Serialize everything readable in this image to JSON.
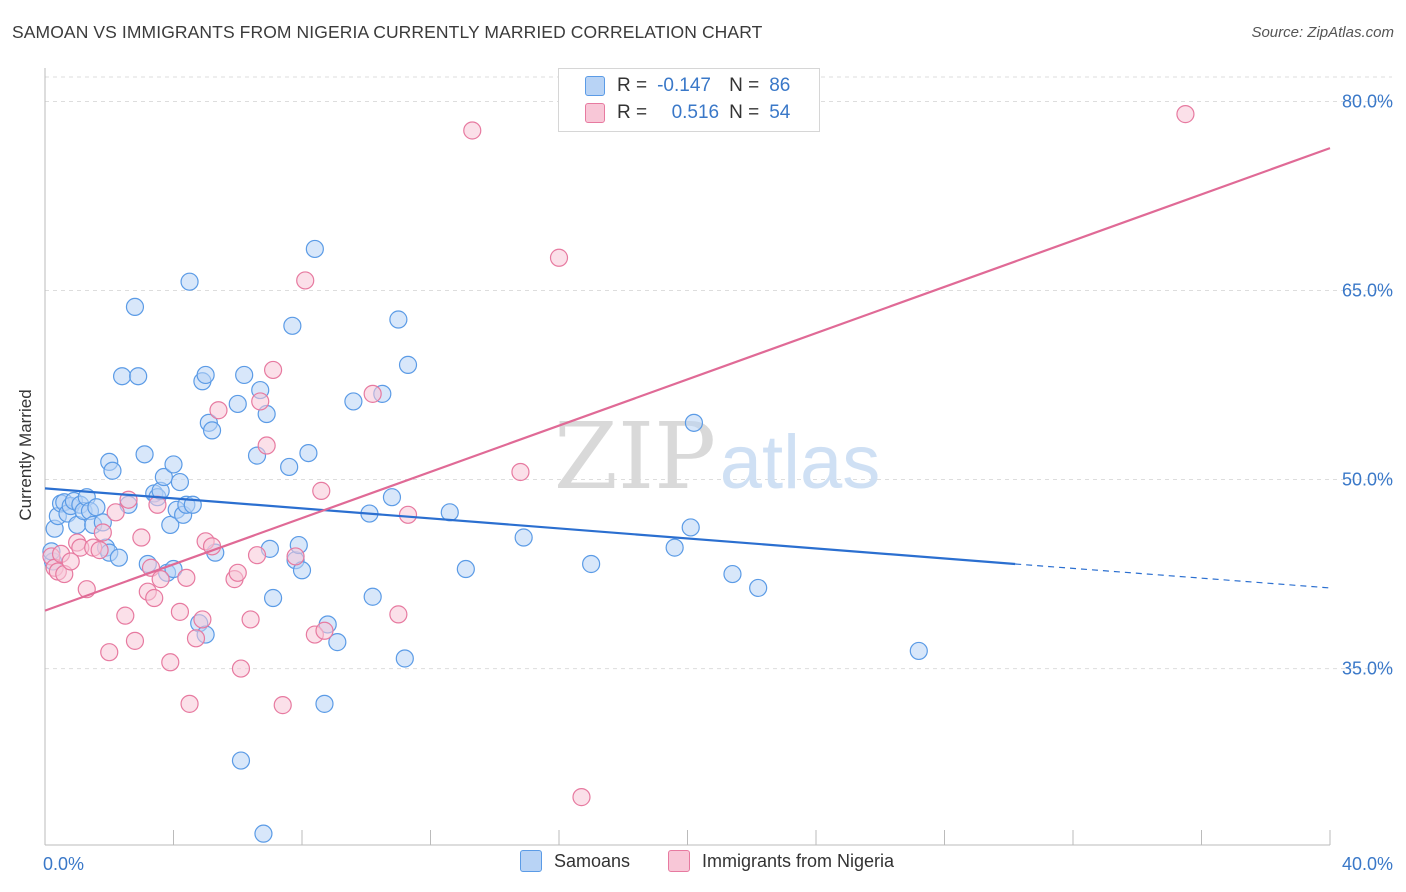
{
  "title": "SAMOAN VS IMMIGRANTS FROM NIGERIA CURRENTLY MARRIED CORRELATION CHART",
  "source": "Source: ZipAtlas.com",
  "watermark": {
    "zip": "ZIP",
    "atlas": "atlas"
  },
  "legend": {
    "rows": [
      {
        "r_label": "R =",
        "r_value": "-0.147",
        "n_label": "N =",
        "n_value": "86",
        "color": "#5b9be6",
        "fill": "#b8d3f5"
      },
      {
        "r_label": "R =",
        "r_value": "0.516",
        "n_label": "N =",
        "n_value": "54",
        "color": "#e77aa0",
        "fill": "#f8c7d7"
      }
    ]
  },
  "bottom_legend": [
    {
      "label": "Samoans",
      "color": "#5b9be6",
      "fill": "#b8d3f5"
    },
    {
      "label": "Immigrants from Nigeria",
      "color": "#e77aa0",
      "fill": "#f8c7d7"
    }
  ],
  "chart_data": {
    "type": "scatter",
    "title": "SAMOAN VS IMMIGRANTS FROM NIGERIA CURRENTLY MARRIED CORRELATION CHART",
    "xlabel": "",
    "ylabel": "Currently Married",
    "xlim": [
      0,
      40
    ],
    "ylim": [
      21,
      82.5
    ],
    "x_tick_labels": [
      {
        "value": 0,
        "label": "0.0%"
      },
      {
        "value": 40,
        "label": "40.0%"
      }
    ],
    "y_tick_labels": [
      {
        "value": 35,
        "label": "35.0%"
      },
      {
        "value": 50,
        "label": "50.0%"
      },
      {
        "value": 65,
        "label": "65.0%"
      },
      {
        "value": 80,
        "label": "80.0%"
      }
    ],
    "x_minor_ticks": [
      0,
      4,
      8,
      12,
      16,
      20,
      24,
      28,
      32,
      36,
      40
    ],
    "grid": true,
    "series": [
      {
        "name": "Samoans",
        "color": "#5b9be6",
        "fill": "#b8d3f5",
        "line_color": "#2b6fd0",
        "trend": {
          "x_start": 0,
          "y_start": 49.3,
          "x_solid_end": 30.2,
          "y_solid_end": 43.3,
          "x_end": 40,
          "y_end": 41.4
        },
        "points": [
          [
            0.25,
            43.5
          ],
          [
            0.3,
            46.1
          ],
          [
            0.4,
            47.1
          ],
          [
            0.5,
            48.1
          ],
          [
            0.6,
            48.2
          ],
          [
            0.7,
            47.3
          ],
          [
            0.8,
            47.9
          ],
          [
            0.9,
            48.3
          ],
          [
            1.0,
            46.4
          ],
          [
            1.1,
            48.0
          ],
          [
            1.2,
            47.5
          ],
          [
            1.3,
            48.6
          ],
          [
            1.4,
            47.5
          ],
          [
            1.5,
            46.4
          ],
          [
            1.6,
            47.8
          ],
          [
            1.8,
            46.6
          ],
          [
            1.9,
            44.6
          ],
          [
            2.0,
            44.2
          ],
          [
            2.0,
            51.4
          ],
          [
            2.1,
            50.7
          ],
          [
            2.3,
            43.8
          ],
          [
            2.4,
            58.2
          ],
          [
            2.6,
            48.0
          ],
          [
            2.8,
            63.7
          ],
          [
            2.9,
            58.2
          ],
          [
            3.1,
            52.0
          ],
          [
            3.2,
            43.3
          ],
          [
            3.4,
            48.9
          ],
          [
            3.5,
            48.6
          ],
          [
            3.6,
            49.1
          ],
          [
            3.7,
            50.2
          ],
          [
            3.8,
            42.6
          ],
          [
            3.9,
            46.4
          ],
          [
            4.0,
            42.9
          ],
          [
            4.0,
            51.2
          ],
          [
            4.1,
            47.6
          ],
          [
            4.2,
            49.8
          ],
          [
            4.3,
            47.2
          ],
          [
            4.4,
            48.0
          ],
          [
            4.5,
            65.7
          ],
          [
            4.6,
            48.0
          ],
          [
            4.8,
            38.6
          ],
          [
            4.9,
            57.8
          ],
          [
            5.0,
            58.3
          ],
          [
            5.0,
            37.7
          ],
          [
            5.1,
            54.5
          ],
          [
            5.2,
            53.9
          ],
          [
            5.3,
            44.2
          ],
          [
            6.0,
            56.0
          ],
          [
            6.1,
            27.7
          ],
          [
            6.2,
            58.3
          ],
          [
            6.6,
            51.9
          ],
          [
            6.7,
            57.1
          ],
          [
            6.8,
            21.9
          ],
          [
            6.9,
            55.2
          ],
          [
            7.0,
            44.5
          ],
          [
            7.1,
            40.6
          ],
          [
            7.6,
            51.0
          ],
          [
            7.7,
            62.2
          ],
          [
            7.8,
            43.6
          ],
          [
            7.9,
            44.8
          ],
          [
            8.0,
            42.8
          ],
          [
            8.2,
            52.1
          ],
          [
            8.4,
            68.3
          ],
          [
            8.7,
            32.2
          ],
          [
            8.8,
            38.5
          ],
          [
            9.1,
            37.1
          ],
          [
            9.6,
            56.2
          ],
          [
            10.1,
            47.3
          ],
          [
            10.2,
            40.7
          ],
          [
            10.5,
            56.8
          ],
          [
            10.8,
            48.6
          ],
          [
            11.0,
            62.7
          ],
          [
            11.2,
            35.8
          ],
          [
            11.3,
            59.1
          ],
          [
            12.6,
            47.4
          ],
          [
            13.1,
            42.9
          ],
          [
            14.9,
            45.4
          ],
          [
            17.0,
            43.3
          ],
          [
            19.6,
            44.6
          ],
          [
            20.1,
            46.2
          ],
          [
            20.2,
            54.5
          ],
          [
            21.4,
            42.5
          ],
          [
            22.2,
            41.4
          ],
          [
            27.2,
            36.4
          ],
          [
            0.2,
            44.3
          ]
        ]
      },
      {
        "name": "Immigrants from Nigeria",
        "color": "#e77aa0",
        "fill": "#f8c7d7",
        "line_color": "#e06a96",
        "trend": {
          "x_start": 0,
          "y_start": 39.6,
          "x_end": 40,
          "y_end": 76.3
        },
        "points": [
          [
            0.2,
            43.9
          ],
          [
            0.3,
            43.0
          ],
          [
            0.4,
            42.7
          ],
          [
            0.5,
            44.1
          ],
          [
            0.6,
            42.5
          ],
          [
            0.8,
            43.5
          ],
          [
            1.0,
            45.0
          ],
          [
            1.1,
            44.6
          ],
          [
            1.3,
            41.3
          ],
          [
            1.5,
            44.6
          ],
          [
            1.7,
            44.4
          ],
          [
            1.8,
            45.8
          ],
          [
            2.0,
            36.3
          ],
          [
            2.2,
            47.4
          ],
          [
            2.5,
            39.2
          ],
          [
            2.6,
            48.4
          ],
          [
            2.8,
            37.2
          ],
          [
            3.0,
            45.4
          ],
          [
            3.2,
            41.1
          ],
          [
            3.3,
            43.0
          ],
          [
            3.4,
            40.6
          ],
          [
            3.5,
            48.0
          ],
          [
            3.6,
            42.1
          ],
          [
            3.9,
            35.5
          ],
          [
            4.2,
            39.5
          ],
          [
            4.4,
            42.2
          ],
          [
            4.5,
            32.2
          ],
          [
            4.7,
            37.4
          ],
          [
            4.9,
            38.9
          ],
          [
            5.0,
            45.1
          ],
          [
            5.2,
            44.7
          ],
          [
            5.4,
            55.5
          ],
          [
            5.9,
            42.1
          ],
          [
            6.0,
            42.6
          ],
          [
            6.1,
            35.0
          ],
          [
            6.4,
            38.9
          ],
          [
            6.6,
            44.0
          ],
          [
            6.7,
            56.2
          ],
          [
            6.9,
            52.7
          ],
          [
            7.1,
            58.7
          ],
          [
            7.4,
            32.1
          ],
          [
            7.8,
            43.9
          ],
          [
            8.1,
            65.8
          ],
          [
            8.4,
            37.7
          ],
          [
            8.6,
            49.1
          ],
          [
            8.7,
            38.0
          ],
          [
            10.2,
            56.8
          ],
          [
            11.0,
            39.3
          ],
          [
            11.3,
            47.2
          ],
          [
            13.3,
            77.7
          ],
          [
            14.8,
            50.6
          ],
          [
            16.0,
            67.6
          ],
          [
            16.7,
            24.8
          ],
          [
            35.5,
            79.0
          ]
        ]
      }
    ]
  }
}
